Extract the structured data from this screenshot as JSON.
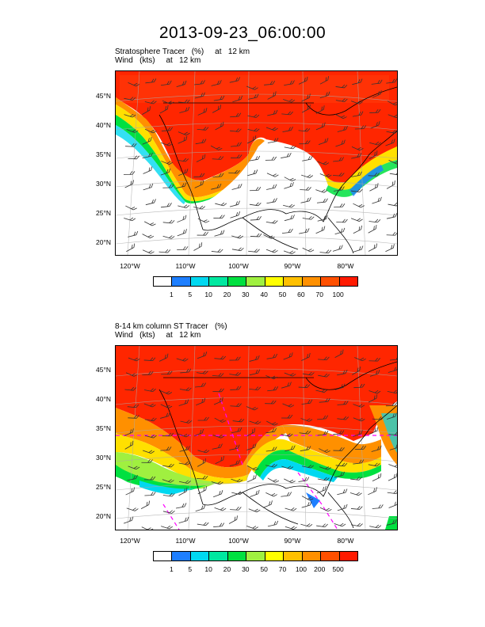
{
  "title": "2013-09-23_06:00:00",
  "panel1": {
    "line1": "Stratosphere Tracer   (%)     at   12 km",
    "line2": "Wind   (kts)     at   12 km",
    "colorbar_labels": [
      "1",
      "5",
      "10",
      "20",
      "30",
      "40",
      "50",
      "60",
      "70",
      "100"
    ]
  },
  "panel2": {
    "line1": "8-14 km column ST Tracer   (%)",
    "line2": "Wind   (kts)     at   12 km",
    "colorbar_labels": [
      "1",
      "5",
      "10",
      "20",
      "30",
      "50",
      "70",
      "100",
      "200",
      "500"
    ]
  },
  "lat_labels": [
    "45°N",
    "40°N",
    "35°N",
    "30°N",
    "25°N",
    "20°N"
  ],
  "lon_labels": [
    "120°W",
    "110°W",
    "100°W",
    "90°W",
    "80°W"
  ],
  "colors": [
    "#ffffff",
    "#1e7fff",
    "#00d8f0",
    "#00e8a0",
    "#00e040",
    "#a0f040",
    "#ffff00",
    "#ffc000",
    "#ff9000",
    "#ff5000",
    "#ff1a00"
  ]
}
